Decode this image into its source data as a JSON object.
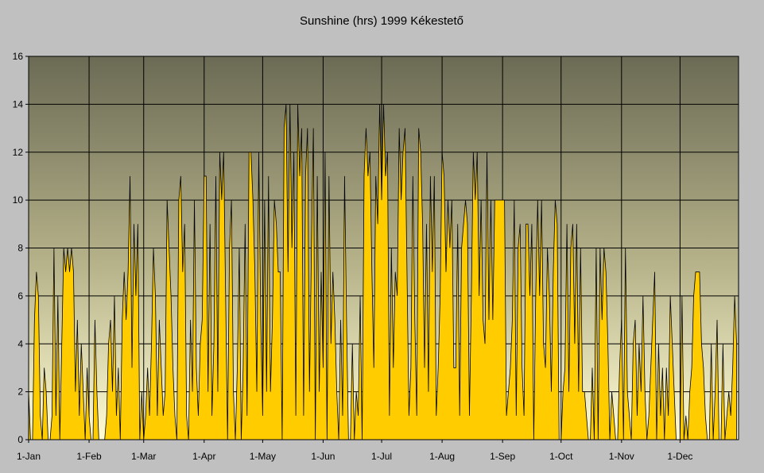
{
  "chart_data": {
    "type": "area",
    "title": "Sunshine (hrs) 1999 Kékestető",
    "xlabel": "",
    "ylabel": "",
    "xlim": [
      1,
      365
    ],
    "ylim": [
      0,
      16
    ],
    "y_ticks": [
      0,
      2,
      4,
      6,
      8,
      10,
      12,
      14,
      16
    ],
    "x_ticks": [
      {
        "day": 1,
        "label": "1-Jan"
      },
      {
        "day": 32,
        "label": "1-Feb"
      },
      {
        "day": 60,
        "label": "1-Mar"
      },
      {
        "day": 91,
        "label": "1-Apr"
      },
      {
        "day": 121,
        "label": "1-May"
      },
      {
        "day": 152,
        "label": "1-Jun"
      },
      {
        "day": 182,
        "label": "1-Jul"
      },
      {
        "day": 213,
        "label": "1-Aug"
      },
      {
        "day": 244,
        "label": "1-Sep"
      },
      {
        "day": 274,
        "label": "1-Oct"
      },
      {
        "day": 305,
        "label": "1-Nov"
      },
      {
        "day": 335,
        "label": "1-Dec"
      }
    ],
    "grid": true,
    "series": [
      {
        "name": "Sunshine (hrs)",
        "color": "#ffcc00",
        "x_start_day": 1,
        "values": [
          2,
          0,
          0,
          5,
          7,
          6,
          1,
          0,
          3,
          2,
          0,
          0,
          1,
          8,
          1,
          6,
          0,
          4,
          8,
          7,
          8,
          7,
          8,
          7,
          2,
          5,
          1,
          4,
          2,
          0,
          3,
          1,
          0,
          0,
          5,
          2,
          0,
          0,
          0,
          0,
          1,
          4,
          5,
          2,
          6,
          1,
          3,
          0,
          5,
          7,
          5,
          7,
          11,
          3,
          9,
          6,
          9,
          0,
          2,
          0,
          1,
          3,
          1,
          4,
          8,
          6,
          1,
          5,
          3,
          1,
          2,
          10,
          8,
          6,
          3,
          1,
          0,
          10,
          11,
          7,
          9,
          1,
          0,
          5,
          2,
          10,
          3,
          1,
          4,
          5,
          11,
          11,
          2,
          9,
          1,
          4,
          11,
          2,
          12,
          10,
          12,
          6,
          0,
          8,
          10,
          2,
          0,
          3,
          8,
          0,
          3,
          9,
          1,
          12,
          12,
          10,
          7,
          2,
          12,
          5,
          1,
          10,
          2,
          11,
          2,
          5,
          10,
          9,
          7,
          7,
          0,
          13,
          14,
          7,
          14,
          8,
          12,
          1,
          14,
          11,
          13,
          1,
          11,
          13,
          2,
          8,
          13,
          0,
          11,
          2,
          7,
          3,
          12,
          0,
          11,
          4,
          7,
          5,
          2,
          0,
          5,
          1,
          11,
          5,
          0,
          0,
          4,
          0,
          2,
          1,
          6,
          0,
          11,
          13,
          11,
          12,
          7,
          3,
          11,
          9,
          14,
          10,
          14,
          11,
          12,
          1,
          8,
          3,
          7,
          6,
          13,
          10,
          12,
          13,
          7,
          1,
          3,
          11,
          5,
          1,
          13,
          12,
          9,
          3,
          9,
          2,
          11,
          7,
          11,
          1,
          3,
          6,
          12,
          11,
          7,
          10,
          8,
          10,
          3,
          3,
          9,
          1,
          8,
          9,
          10,
          9,
          1,
          6,
          12,
          10,
          12,
          6,
          10,
          5,
          4,
          12,
          5,
          10,
          5,
          10,
          10,
          10,
          10,
          10,
          10,
          1,
          2,
          3,
          5,
          10,
          1,
          8,
          9,
          3,
          1,
          9,
          9,
          6,
          9,
          0,
          6,
          10,
          6,
          10,
          4,
          3,
          8,
          6,
          2,
          7,
          10,
          9,
          0,
          0,
          2,
          3,
          9,
          2,
          8,
          9,
          4,
          9,
          2,
          8,
          2,
          2,
          1,
          0,
          0,
          3,
          0,
          8,
          0,
          8,
          5,
          8,
          7,
          4,
          0,
          2,
          1,
          0,
          0,
          3,
          5,
          0,
          8,
          2,
          1,
          0,
          4,
          5,
          1,
          4,
          2,
          6,
          2,
          0,
          1,
          3,
          5,
          7,
          0,
          4,
          1,
          3,
          0,
          3,
          1,
          6,
          4,
          2,
          0,
          0,
          0,
          6,
          0,
          1,
          0,
          2,
          3,
          6,
          7,
          7,
          7,
          4,
          3,
          1,
          0,
          0,
          4,
          0,
          2,
          5,
          0,
          0,
          4,
          0,
          1,
          2,
          1,
          3,
          6,
          4
        ]
      }
    ]
  }
}
